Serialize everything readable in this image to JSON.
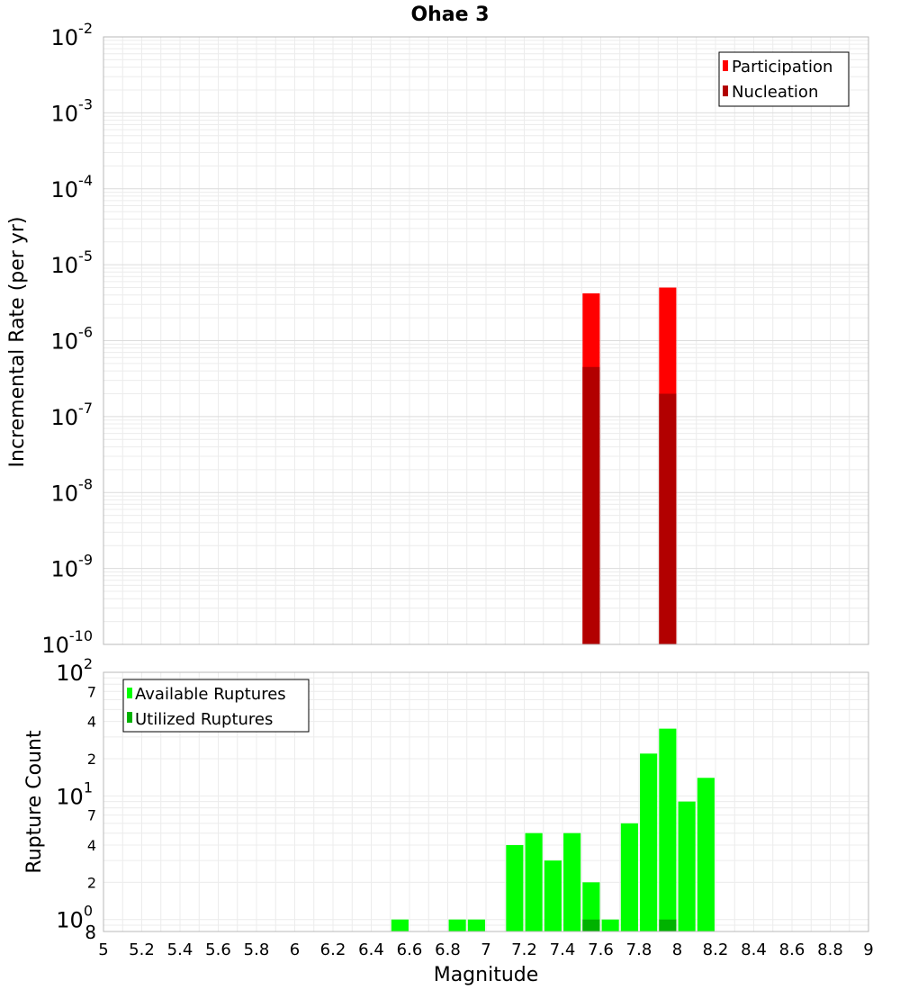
{
  "chart_data": [
    {
      "type": "bar",
      "title": "Ohae 3",
      "ylabel": "Incremental Rate (per yr)",
      "yscale": "log",
      "ylim": [
        1e-10,
        0.01
      ],
      "xlim": [
        5,
        9
      ],
      "y_ticks": [
        {
          "base": "10",
          "exp": "-10",
          "value": 1e-10
        },
        {
          "base": "10",
          "exp": "-9",
          "value": 1e-09
        },
        {
          "base": "10",
          "exp": "-8",
          "value": 1e-08
        },
        {
          "base": "10",
          "exp": "-7",
          "value": 1e-07
        },
        {
          "base": "10",
          "exp": "-6",
          "value": 1e-06
        },
        {
          "base": "10",
          "exp": "-5",
          "value": 1e-05
        },
        {
          "base": "10",
          "exp": "-4",
          "value": 0.0001
        },
        {
          "base": "10",
          "exp": "-3",
          "value": 0.001
        },
        {
          "base": "10",
          "exp": "-2",
          "value": 0.01
        }
      ],
      "grid": true,
      "legend": "top-right",
      "series": [
        {
          "name": "Participation",
          "color": "#ff0000",
          "x": [
            7.55,
            7.95
          ],
          "values": [
            4.2e-06,
            5e-06
          ]
        },
        {
          "name": "Nucleation",
          "color": "#b20000",
          "x": [
            7.55,
            7.95
          ],
          "values": [
            4.5e-07,
            2e-07
          ]
        }
      ]
    },
    {
      "type": "bar",
      "xlabel": "Magnitude",
      "ylabel": "Rupture Count",
      "yscale": "log",
      "ylim": [
        0.8,
        100
      ],
      "xlim": [
        5,
        9
      ],
      "x_ticks": [
        "5",
        "5.2",
        "5.4",
        "5.6",
        "5.8",
        "6",
        "6.2",
        "6.4",
        "6.6",
        "6.8",
        "7",
        "7.2",
        "7.4",
        "7.6",
        "7.8",
        "8",
        "8.2",
        "8.4",
        "8.6",
        "8.8",
        "9"
      ],
      "y_major_ticks": [
        {
          "base": "10",
          "exp": "0",
          "value": 1
        },
        {
          "base": "10",
          "exp": "1",
          "value": 10
        },
        {
          "base": "10",
          "exp": "2",
          "value": 100
        }
      ],
      "y_minor_ticks": [
        {
          "label": "8",
          "value": 0.8
        },
        {
          "label": "2",
          "value": 2
        },
        {
          "label": "4",
          "value": 4
        },
        {
          "label": "7",
          "value": 7
        },
        {
          "label": "2",
          "value": 20
        },
        {
          "label": "4",
          "value": 40
        },
        {
          "label": "7",
          "value": 70
        }
      ],
      "grid": true,
      "legend": "top-left",
      "series": [
        {
          "name": "Available Ruptures",
          "color": "#00ff00",
          "x": [
            6.55,
            6.85,
            6.95,
            7.15,
            7.25,
            7.35,
            7.45,
            7.55,
            7.65,
            7.75,
            7.85,
            7.95,
            8.05,
            8.15
          ],
          "values": [
            1,
            1,
            1,
            4,
            5,
            3,
            5,
            2,
            1,
            6,
            22,
            35,
            9,
            14
          ]
        },
        {
          "name": "Utilized Ruptures",
          "color": "#00b200",
          "x": [
            7.55,
            7.95
          ],
          "values": [
            1,
            1
          ]
        }
      ]
    }
  ]
}
